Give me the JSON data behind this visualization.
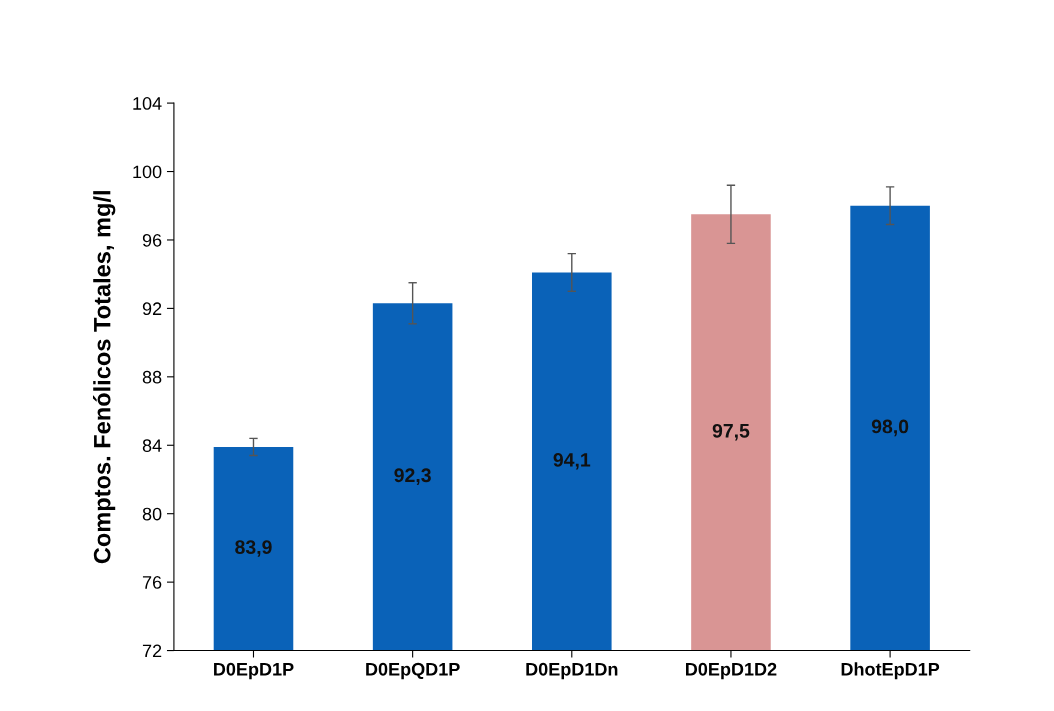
{
  "chart_data": {
    "type": "bar",
    "ylabel": "Comptos. Fenólicos Totales, mg/l",
    "categories": [
      "D0EpD1P",
      "D0EpQD1P",
      "D0EpD1Dn",
      "D0EpD1D2",
      "DhotEpD1P"
    ],
    "values": [
      83.9,
      92.3,
      94.1,
      97.5,
      98.0
    ],
    "colors": [
      "#0a62b8",
      "#0a62b8",
      "#0a62b8",
      "#d99594",
      "#0a62b8"
    ],
    "errors": [
      0.5,
      1.2,
      1.1,
      1.7,
      1.1
    ],
    "value_labels": [
      "83,9",
      "92,3",
      "94,1",
      "97,5",
      "98,0"
    ],
    "ylim": [
      72,
      104
    ],
    "yticks": [
      72,
      76,
      80,
      84,
      88,
      92,
      96,
      100,
      104
    ],
    "grid": false
  }
}
